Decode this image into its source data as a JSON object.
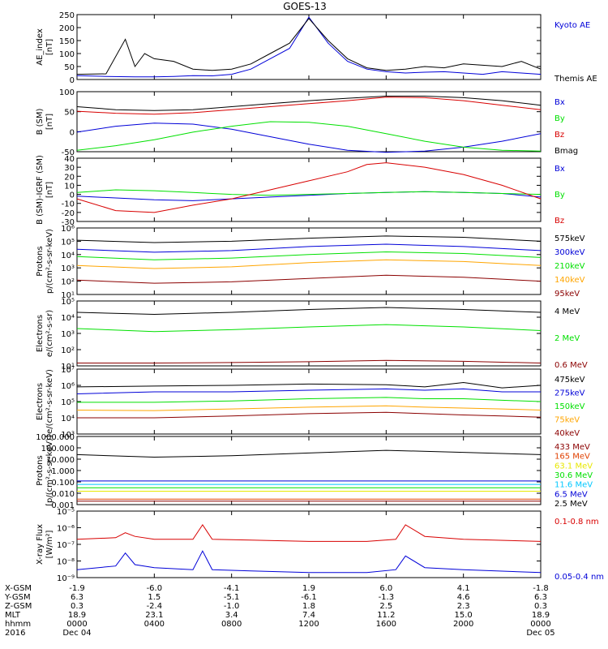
{
  "title": "GOES-13",
  "colors": {
    "black": "#000000",
    "blue": "#0000d8",
    "green": "#00e000",
    "red": "#d80000",
    "orange": "#ffa500",
    "darkred": "#8b0000",
    "cyan": "#00c8ff",
    "yellow": "#e8e800",
    "orange_red": "#e04000"
  },
  "chart_data": [
    {
      "type": "line",
      "ylabel": [
        "AE_index",
        "[nT]"
      ],
      "ylim": [
        0,
        250
      ],
      "yscale": "linear",
      "yticks": [
        "0",
        "50",
        "100",
        "150",
        "200",
        "250"
      ],
      "series": [
        {
          "name": "Kyoto AE",
          "color": "blue",
          "x": [
            0,
            1.5,
            3,
            4,
            5,
            6,
            7,
            8,
            9,
            10,
            11,
            12,
            13,
            14,
            15,
            16,
            17,
            18,
            19,
            20,
            21,
            22,
            23,
            24
          ],
          "y": [
            15,
            12,
            10,
            10,
            12,
            15,
            14,
            20,
            40,
            80,
            120,
            240,
            140,
            70,
            40,
            30,
            25,
            28,
            30,
            25,
            20,
            30,
            25,
            20
          ]
        },
        {
          "name": "Themis AE",
          "color": "black",
          "x": [
            0,
            1.5,
            2.5,
            3,
            3.5,
            4,
            5,
            6,
            7,
            8,
            9,
            10,
            11,
            12,
            13,
            14,
            15,
            16,
            17,
            18,
            19,
            20,
            21,
            22,
            23,
            24
          ],
          "y": [
            20,
            22,
            155,
            50,
            100,
            80,
            70,
            40,
            35,
            40,
            60,
            100,
            140,
            235,
            150,
            80,
            45,
            35,
            40,
            50,
            45,
            60,
            55,
            50,
            70,
            40
          ]
        }
      ]
    },
    {
      "type": "line",
      "ylabel": [
        "B (SM)",
        "[nT]"
      ],
      "ylim": [
        -50,
        150
      ],
      "yscale": "linear",
      "yticks": [
        "-50",
        "0",
        "50",
        "100"
      ],
      "series": [
        {
          "name": "Bx",
          "color": "blue",
          "x": [
            0,
            2,
            4,
            6,
            8,
            10,
            12,
            14,
            16,
            18,
            20,
            22,
            24
          ],
          "y": [
            15,
            35,
            45,
            42,
            25,
            0,
            -25,
            -45,
            -52,
            -48,
            -35,
            -15,
            10
          ]
        },
        {
          "name": "By",
          "color": "green",
          "x": [
            0,
            2,
            4,
            6,
            8,
            10,
            12,
            14,
            16,
            18,
            20,
            22,
            24
          ],
          "y": [
            -45,
            -30,
            -10,
            15,
            35,
            50,
            48,
            35,
            10,
            -15,
            -35,
            -45,
            -48
          ]
        },
        {
          "name": "Bz",
          "color": "red",
          "x": [
            0,
            2,
            4,
            6,
            8,
            10,
            12,
            14,
            16,
            18,
            20,
            22,
            24
          ],
          "y": [
            85,
            78,
            75,
            80,
            90,
            100,
            110,
            120,
            132,
            130,
            120,
            105,
            90
          ]
        },
        {
          "name": "Bmag",
          "color": "black",
          "x": [
            0,
            2,
            4,
            6,
            8,
            10,
            12,
            14,
            16,
            18,
            20,
            22,
            24
          ],
          "y": [
            100,
            90,
            87,
            90,
            100,
            110,
            120,
            128,
            135,
            135,
            130,
            120,
            105
          ]
        }
      ]
    },
    {
      "type": "line",
      "ylabel": [
        "B (SM)-IGRF (SM)",
        "[nT]"
      ],
      "ylim": [
        -30,
        40
      ],
      "yscale": "linear",
      "yticks": [
        "-30",
        "-20",
        "-10",
        "0",
        "10",
        "20",
        "30",
        "40"
      ],
      "series": [
        {
          "name": "Bx",
          "color": "blue",
          "x": [
            0,
            2,
            4,
            6,
            8,
            10,
            12,
            14,
            16,
            18,
            20,
            22,
            24
          ],
          "y": [
            -2,
            -4,
            -6,
            -7,
            -5,
            -3,
            -1,
            1,
            2,
            3,
            2,
            1,
            -3
          ]
        },
        {
          "name": "By",
          "color": "green",
          "x": [
            0,
            2,
            4,
            6,
            8,
            10,
            12,
            14,
            16,
            18,
            20,
            22,
            24
          ],
          "y": [
            2,
            5,
            4,
            2,
            0,
            -1,
            0,
            1,
            2,
            3,
            2,
            1,
            0
          ]
        },
        {
          "name": "Bz",
          "color": "red",
          "x": [
            0,
            2,
            4,
            6,
            8,
            10,
            12,
            14,
            15,
            16,
            18,
            20,
            22,
            24
          ],
          "y": [
            -5,
            -18,
            -20,
            -12,
            -5,
            5,
            15,
            25,
            33,
            35,
            30,
            22,
            10,
            -5
          ]
        }
      ]
    },
    {
      "type": "line",
      "ylabel": [
        "Protons",
        "p/(cm²-s-sr-keV)"
      ],
      "ylim": [
        10,
        1000000
      ],
      "yscale": "log",
      "yticks": [
        "10¹",
        "10²",
        "10³",
        "10⁴",
        "10⁵",
        "10⁶"
      ],
      "series": [
        {
          "name": "575keV",
          "color": "black",
          "x": [
            0,
            4,
            8,
            12,
            16,
            20,
            24
          ],
          "y": [
            120000,
            80000,
            100000,
            170000,
            250000,
            200000,
            100000
          ]
        },
        {
          "name": "300keV",
          "color": "blue",
          "x": [
            0,
            4,
            8,
            12,
            16,
            20,
            24
          ],
          "y": [
            25000,
            15000,
            20000,
            40000,
            60000,
            40000,
            20000
          ]
        },
        {
          "name": "210keV",
          "color": "green",
          "x": [
            0,
            4,
            8,
            12,
            16,
            20,
            24
          ],
          "y": [
            7000,
            4000,
            5500,
            10000,
            16000,
            12000,
            6000
          ]
        },
        {
          "name": "140keV",
          "color": "orange",
          "x": [
            0,
            4,
            8,
            12,
            16,
            20,
            24
          ],
          "y": [
            1500,
            900,
            1200,
            2500,
            4000,
            3000,
            1500
          ]
        },
        {
          "name": "95keV",
          "color": "darkred",
          "x": [
            0,
            4,
            8,
            12,
            16,
            20,
            24
          ],
          "y": [
            120,
            70,
            90,
            160,
            280,
            200,
            100
          ]
        }
      ]
    },
    {
      "type": "line",
      "ylabel": [
        "Electrons",
        "e/(cm²-s-sr)"
      ],
      "ylim": [
        10,
        100000
      ],
      "yscale": "log",
      "yticks": [
        "10¹",
        "10²",
        "10³",
        "10⁴",
        "10⁵"
      ],
      "series": [
        {
          "name": "4 MeV",
          "color": "black",
          "x": [
            0,
            4,
            8,
            12,
            16,
            20,
            24
          ],
          "y": [
            20000,
            15000,
            20000,
            30000,
            40000,
            30000,
            20000
          ]
        },
        {
          "name": "2 MeV",
          "color": "green",
          "x": [
            0,
            4,
            8,
            12,
            16,
            20,
            24
          ],
          "y": [
            2000,
            1300,
            1700,
            2500,
            3500,
            2500,
            1500
          ]
        },
        {
          "name": "0.6 MeV",
          "color": "darkred",
          "x": [
            0,
            4,
            8,
            12,
            16,
            20,
            24
          ],
          "y": [
            15,
            15,
            16,
            18,
            22,
            19,
            15
          ]
        }
      ]
    },
    {
      "type": "line",
      "ylabel": [
        "Electrons",
        "e/(cm²-s-sr-keV)"
      ],
      "ylim": [
        1000,
        10000000
      ],
      "yscale": "log",
      "yticks": [
        "10³",
        "10⁴",
        "10⁵",
        "10⁶",
        "10⁷"
      ],
      "series": [
        {
          "name": "475keV",
          "color": "black",
          "x": [
            0,
            4,
            8,
            12,
            16,
            18,
            20,
            22,
            24
          ],
          "y": [
            800000,
            900000,
            1000000,
            1200000,
            1100000,
            800000,
            1500000,
            700000,
            1000000
          ]
        },
        {
          "name": "275keV",
          "color": "blue",
          "x": [
            0,
            4,
            8,
            12,
            16,
            18,
            20,
            22,
            24
          ],
          "y": [
            300000,
            400000,
            400000,
            500000,
            600000,
            500000,
            600000,
            400000,
            400000
          ]
        },
        {
          "name": "150keV",
          "color": "green",
          "x": [
            0,
            4,
            8,
            12,
            16,
            18,
            20,
            22,
            24
          ],
          "y": [
            90000,
            90000,
            110000,
            150000,
            180000,
            150000,
            150000,
            120000,
            100000
          ]
        },
        {
          "name": "75keV",
          "color": "orange",
          "x": [
            0,
            4,
            8,
            12,
            16,
            18,
            20,
            22,
            24
          ],
          "y": [
            30000,
            28000,
            35000,
            45000,
            55000,
            45000,
            40000,
            35000,
            30000
          ]
        },
        {
          "name": "40keV",
          "color": "darkred",
          "x": [
            0,
            4,
            8,
            12,
            16,
            18,
            20,
            22,
            24
          ],
          "y": [
            10000,
            10000,
            13000,
            18000,
            22000,
            18000,
            15000,
            13000,
            11000
          ]
        }
      ]
    },
    {
      "type": "line",
      "ylabel": [
        "Protons",
        "[p/(cm²-s-sr-keV)]"
      ],
      "ylim": [
        0.001,
        1000
      ],
      "yscale": "log",
      "yticks": [
        "0.001",
        "0.010",
        "0.100",
        "1.000",
        "10.000",
        "100.000",
        "1000.000"
      ],
      "series": [
        {
          "name": "433 MeV",
          "color": "darkred",
          "x": [
            0,
            24
          ],
          "y": [
            0.002,
            0.002
          ]
        },
        {
          "name": "165 MeV",
          "color": "orange_red",
          "x": [
            0,
            24
          ],
          "y": [
            0.003,
            0.003
          ]
        },
        {
          "name": "63.1 MeV",
          "color": "yellow",
          "x": [
            0,
            24
          ],
          "y": [
            0.015,
            0.015
          ]
        },
        {
          "name": "30.6 MeV",
          "color": "green",
          "x": [
            0,
            24
          ],
          "y": [
            0.03,
            0.03
          ]
        },
        {
          "name": "11.6 MeV",
          "color": "cyan",
          "x": [
            0,
            24
          ],
          "y": [
            0.06,
            0.06
          ]
        },
        {
          "name": "6.5 MeV",
          "color": "blue",
          "x": [
            0,
            24
          ],
          "y": [
            0.12,
            0.12
          ]
        },
        {
          "name": "2.5 MeV",
          "color": "black",
          "x": [
            0,
            4,
            8,
            12,
            16,
            20,
            24
          ],
          "y": [
            25,
            15,
            20,
            35,
            60,
            40,
            25
          ]
        }
      ]
    },
    {
      "type": "line",
      "ylabel": [
        "X-ray Flux",
        "[W/m²]"
      ],
      "ylim": [
        1e-09,
        1e-05
      ],
      "yscale": "log",
      "yticks": [
        "10⁻⁹",
        "10⁻⁸",
        "10⁻⁷",
        "10⁻⁶",
        "10⁻⁵"
      ],
      "series": [
        {
          "name": "0.1-0.8 nm",
          "color": "red",
          "x": [
            0,
            2,
            2.5,
            3,
            4,
            6,
            6.5,
            7,
            9,
            12,
            15,
            16.5,
            17,
            18,
            20,
            24
          ],
          "y": [
            2e-07,
            2.5e-07,
            5e-07,
            3e-07,
            2e-07,
            2e-07,
            1.5e-06,
            2e-07,
            1.8e-07,
            1.5e-07,
            1.5e-07,
            2e-07,
            1.5e-06,
            3e-07,
            2e-07,
            1.5e-07
          ]
        },
        {
          "name": "0.05-0.4 nm",
          "color": "blue",
          "x": [
            0,
            2,
            2.5,
            3,
            4,
            6,
            6.5,
            7,
            9,
            12,
            15,
            16.5,
            17,
            18,
            20,
            24
          ],
          "y": [
            3e-09,
            5e-09,
            3e-08,
            6e-09,
            4e-09,
            3e-09,
            4e-08,
            3e-09,
            2.5e-09,
            2e-09,
            2e-09,
            3e-09,
            2e-08,
            4e-09,
            3e-09,
            2e-09
          ]
        }
      ]
    }
  ],
  "xaxis": {
    "row_labels": [
      "X-GSM",
      "Y-GSM",
      "Z-GSM",
      "MLT",
      "hhmm",
      "2016"
    ],
    "columns": [
      [
        "-1.9",
        "6.3",
        "0.3",
        "18.9",
        "0000",
        "Dec 04"
      ],
      [
        "-6.0",
        "1.5",
        "-2.4",
        "23.1",
        "0400",
        ""
      ],
      [
        "-4.1",
        "-5.1",
        "-1.0",
        "3.4",
        "0800",
        ""
      ],
      [
        "1.9",
        "-6.1",
        "1.8",
        "7.4",
        "1200",
        ""
      ],
      [
        "6.0",
        "-1.3",
        "2.5",
        "11.2",
        "1600",
        ""
      ],
      [
        "4.1",
        "4.6",
        "2.3",
        "15.0",
        "2000",
        ""
      ],
      [
        "-1.8",
        "6.3",
        "0.3",
        "18.9",
        "0000",
        "Dec 05"
      ]
    ]
  }
}
